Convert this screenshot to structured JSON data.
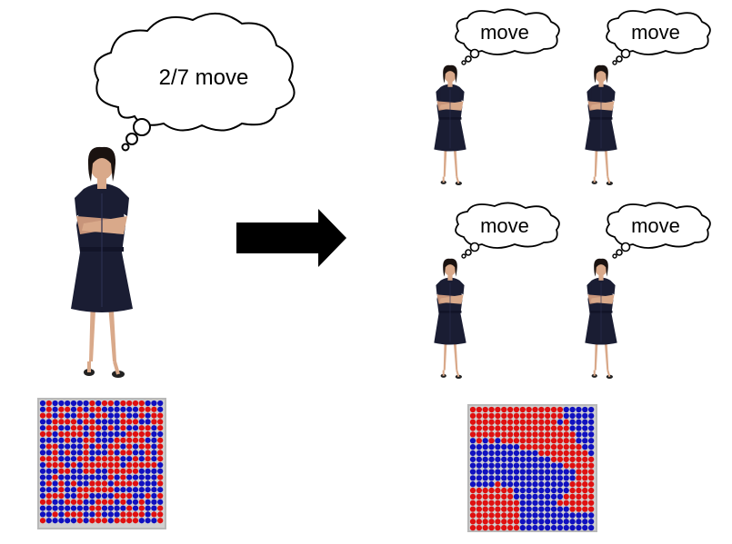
{
  "main_thought": "2/7 move",
  "clone_thoughts": [
    "move",
    "move",
    "move",
    "move"
  ],
  "colors": {
    "dress": "#1a1d33",
    "skin": "#d9a98a",
    "hair": "#1a1210",
    "arrow": "#000000",
    "grid_red": "#e01010",
    "grid_blue": "#1010c0",
    "grid_frame": "#b8b8b8"
  },
  "grids": {
    "before": {
      "pattern": "mixed",
      "description_type": "dot-grid"
    },
    "after": {
      "pattern": "segregated",
      "description_type": "dot-grid"
    }
  }
}
